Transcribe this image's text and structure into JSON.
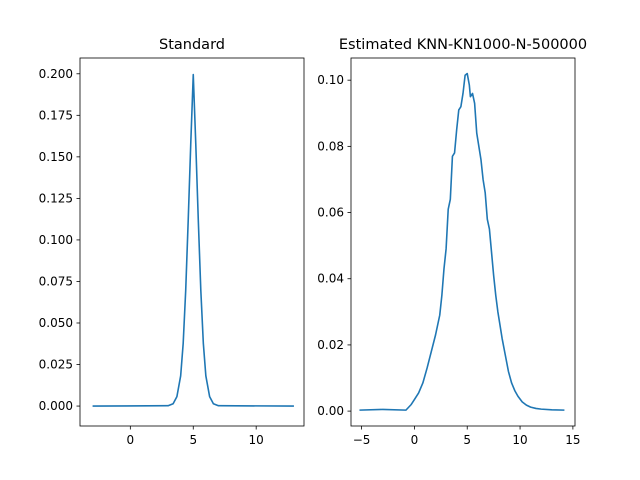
{
  "chart_data": [
    {
      "type": "line",
      "title": "Standard",
      "xlabel": "",
      "ylabel": "",
      "xlim": [
        -4.0,
        13.8
      ],
      "ylim": [
        -0.012,
        0.2095
      ],
      "x_ticks": [
        0,
        5,
        10
      ],
      "x_tick_labels": [
        "0",
        "5",
        "10"
      ],
      "y_ticks": [
        0.0,
        0.025,
        0.05,
        0.075,
        0.1,
        0.125,
        0.15,
        0.175,
        0.2
      ],
      "y_tick_labels": [
        "0.000",
        "0.025",
        "0.050",
        "0.075",
        "0.100",
        "0.125",
        "0.150",
        "0.175",
        "0.200"
      ],
      "grid": false,
      "series": [
        {
          "color": "#1f77b4",
          "x": [
            -3.0,
            3.0,
            3.4,
            3.7,
            4.0,
            4.2,
            4.4,
            4.6,
            4.8,
            5.0,
            5.2,
            5.4,
            5.6,
            5.8,
            6.0,
            6.3,
            6.6,
            7.0,
            13.0
          ],
          "y": [
            0.0,
            0.0002,
            0.0014,
            0.0057,
            0.0182,
            0.0378,
            0.0697,
            0.112,
            0.1577,
            0.1995,
            0.1577,
            0.112,
            0.0697,
            0.0378,
            0.0182,
            0.0057,
            0.0014,
            0.0002,
            0.0
          ]
        }
      ]
    },
    {
      "type": "line",
      "title": "Estimated KNN-KN1000-N-500000",
      "xlabel": "",
      "ylabel": "",
      "xlim": [
        -6.0,
        15.2
      ],
      "ylim": [
        -0.0045,
        0.1067
      ],
      "x_ticks": [
        -5,
        0,
        5,
        10,
        15
      ],
      "x_tick_labels": [
        "−5",
        "0",
        "5",
        "10",
        "15"
      ],
      "y_ticks": [
        0.0,
        0.02,
        0.04,
        0.06,
        0.08,
        0.1
      ],
      "y_tick_labels": [
        "0.00",
        "0.02",
        "0.04",
        "0.06",
        "0.08",
        "0.10"
      ],
      "grid": false,
      "series": [
        {
          "color": "#1f77b4",
          "x": [
            -5.2,
            -3.0,
            -0.8,
            -0.3,
            0.0,
            0.4,
            0.8,
            1.2,
            1.6,
            2.0,
            2.4,
            2.6,
            2.8,
            3.0,
            3.2,
            3.4,
            3.6,
            3.8,
            4.0,
            4.2,
            4.4,
            4.6,
            4.8,
            5.0,
            5.2,
            5.3,
            5.5,
            5.7,
            5.9,
            6.1,
            6.3,
            6.5,
            6.7,
            6.9,
            7.1,
            7.3,
            7.5,
            7.7,
            7.9,
            8.1,
            8.3,
            8.6,
            8.9,
            9.2,
            9.5,
            9.8,
            10.2,
            10.6,
            11.0,
            11.5,
            12.0,
            13.0,
            14.2
          ],
          "y": [
            0.0003,
            0.0005,
            0.0003,
            0.002,
            0.0035,
            0.0055,
            0.0085,
            0.013,
            0.018,
            0.023,
            0.029,
            0.035,
            0.043,
            0.049,
            0.061,
            0.064,
            0.077,
            0.078,
            0.085,
            0.091,
            0.092,
            0.096,
            0.1015,
            0.102,
            0.0985,
            0.095,
            0.096,
            0.093,
            0.084,
            0.08,
            0.076,
            0.07,
            0.066,
            0.058,
            0.055,
            0.048,
            0.041,
            0.035,
            0.03,
            0.026,
            0.022,
            0.017,
            0.012,
            0.0085,
            0.0062,
            0.0045,
            0.0028,
            0.0018,
            0.0012,
            0.0008,
            0.0006,
            0.0004,
            0.0003
          ]
        }
      ]
    }
  ]
}
